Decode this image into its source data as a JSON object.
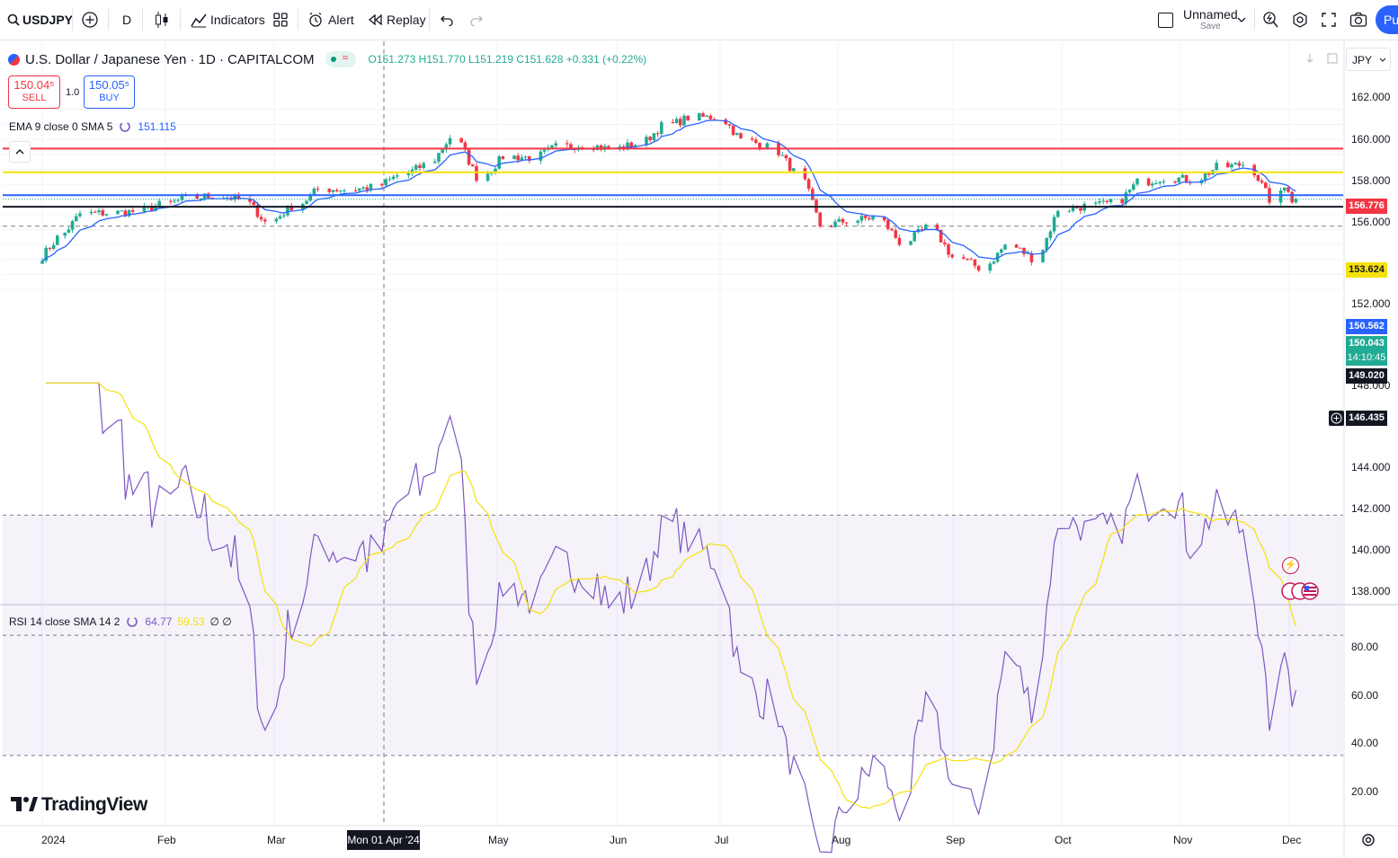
{
  "toolbar": {
    "symbol": "USDJPY",
    "interval": "D",
    "indicators_label": "Indicators",
    "alert_label": "Alert",
    "replay_label": "Replay",
    "layout_name": "Unnamed",
    "save_label": "Save",
    "publish_label": "Pu"
  },
  "legend": {
    "title": "U.S. Dollar / Japanese Yen · 1D · CAPITALCOM",
    "ohlc": "O151.273 H151.770 L151.219 C151.628 +0.331 (+0.22%)",
    "sell_price": "150.04⁵",
    "sell_label": "SELL",
    "spread": "1.0",
    "buy_price": "150.05⁵",
    "buy_label": "BUY",
    "ema_label": "EMA 9 close 0 SMA 5",
    "ema_value": "151.115",
    "rsi_label": "RSI 14 close SMA 14 2",
    "rsi_value": "64.77",
    "rsi_sma_value": "59.53",
    "rsi_extra": "∅ ∅"
  },
  "currency_select": "JPY",
  "price_axis": {
    "ticks": [
      "162.000",
      "160.000",
      "158.000",
      "156.000",
      "152.000",
      "148.000",
      "144.000",
      "142.000",
      "140.000",
      "138.000"
    ],
    "labels": [
      {
        "text": "156.776",
        "color": "#f23645"
      },
      {
        "text": "153.624",
        "color": "#f5e10b"
      },
      {
        "text": "150.562",
        "color": "#2962ff"
      },
      {
        "text": "150.043",
        "color": "#22ab94"
      },
      {
        "text": "14:10:45",
        "color": "#22ab94"
      },
      {
        "text": "149.020",
        "color": "#131722"
      },
      {
        "text": "146.435",
        "color": "#131722"
      }
    ]
  },
  "rsi_axis": {
    "ticks": [
      "80.00",
      "60.00",
      "40.00",
      "20.00"
    ]
  },
  "time_axis": {
    "ticks": [
      "2024",
      "Feb",
      "Mar",
      "May",
      "Jun",
      "Jul",
      "Aug",
      "Sep",
      "Oct",
      "Nov",
      "Dec"
    ],
    "crosshair_label": "Mon 01 Apr '24"
  },
  "branding": "TradingView",
  "colors": {
    "up": "#22ab94",
    "down": "#f23645",
    "ema": "#2962ff",
    "rsi": "#7e57c2",
    "rsi_sma": "#f5e10b"
  },
  "chart_data": {
    "type": "candlestick",
    "symbol": "USDJPY",
    "horizontal_lines": [
      156.776,
      153.624,
      150.562,
      149.02,
      146.435
    ],
    "price_range": [
      137,
      163
    ],
    "weekly_closes": [
      [
        "2024-01-02",
        141.8
      ],
      [
        "2024-01-08",
        144.9
      ],
      [
        "2024-01-15",
        148.1
      ],
      [
        "2024-01-22",
        148.2
      ],
      [
        "2024-01-29",
        148.4
      ],
      [
        "2024-02-05",
        149.3
      ],
      [
        "2024-02-12",
        150.2
      ],
      [
        "2024-02-19",
        150.5
      ],
      [
        "2024-02-26",
        150.0
      ],
      [
        "2024-03-04",
        147.0
      ],
      [
        "2024-03-11",
        149.1
      ],
      [
        "2024-03-18",
        151.4
      ],
      [
        "2024-03-25",
        151.3
      ],
      [
        "2024-04-01",
        151.6
      ],
      [
        "2024-04-08",
        153.2
      ],
      [
        "2024-04-15",
        154.6
      ],
      [
        "2024-04-22",
        158.3
      ],
      [
        "2024-04-29",
        153.0
      ],
      [
        "2024-05-06",
        155.7
      ],
      [
        "2024-05-13",
        155.6
      ],
      [
        "2024-05-20",
        157.0
      ],
      [
        "2024-05-27",
        157.3
      ],
      [
        "2024-06-03",
        156.7
      ],
      [
        "2024-06-10",
        157.4
      ],
      [
        "2024-06-17",
        159.8
      ],
      [
        "2024-06-24",
        160.9
      ],
      [
        "2024-07-01",
        161.0
      ],
      [
        "2024-07-08",
        157.9
      ],
      [
        "2024-07-15",
        157.0
      ],
      [
        "2024-07-22",
        153.7
      ],
      [
        "2024-07-29",
        146.5
      ],
      [
        "2024-08-05",
        147.2
      ],
      [
        "2024-08-12",
        147.6
      ],
      [
        "2024-08-19",
        144.3
      ],
      [
        "2024-08-26",
        146.2
      ],
      [
        "2024-09-02",
        142.3
      ],
      [
        "2024-09-09",
        140.9
      ],
      [
        "2024-09-16",
        143.9
      ],
      [
        "2024-09-23",
        142.2
      ],
      [
        "2024-09-30",
        148.7
      ],
      [
        "2024-10-07",
        149.1
      ],
      [
        "2024-10-14",
        149.5
      ],
      [
        "2024-10-21",
        152.3
      ],
      [
        "2024-10-28",
        152.9
      ],
      [
        "2024-11-04",
        152.6
      ],
      [
        "2024-11-11",
        154.3
      ],
      [
        "2024-11-18",
        154.7
      ],
      [
        "2024-11-25",
        150.0
      ]
    ],
    "rsi": {
      "length": 14,
      "upper": 70,
      "middle": 50,
      "lower": 30
    }
  }
}
